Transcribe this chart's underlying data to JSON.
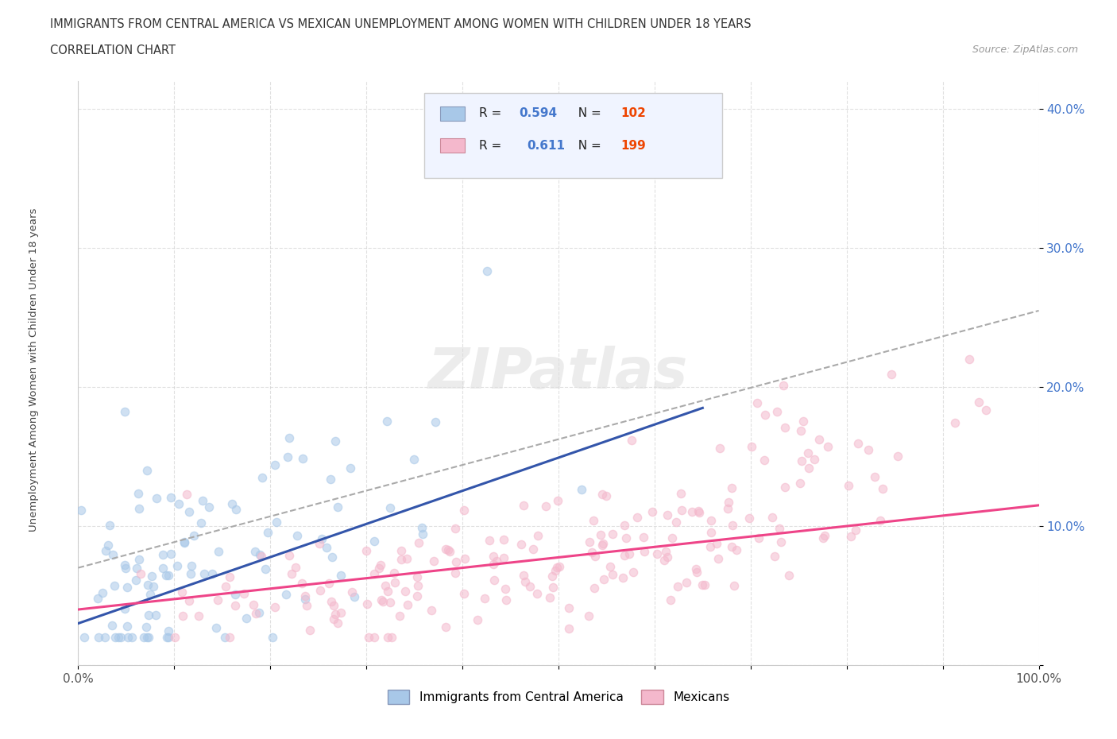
{
  "title": "IMMIGRANTS FROM CENTRAL AMERICA VS MEXICAN UNEMPLOYMENT AMONG WOMEN WITH CHILDREN UNDER 18 YEARS",
  "subtitle": "CORRELATION CHART",
  "source": "Source: ZipAtlas.com",
  "ylabel": "Unemployment Among Women with Children Under 18 years",
  "xlim": [
    0,
    1.0
  ],
  "ylim": [
    0,
    0.42
  ],
  "xtick_positions": [
    0,
    0.1,
    0.2,
    0.3,
    0.4,
    0.5,
    0.6,
    0.7,
    0.8,
    0.9,
    1.0
  ],
  "xticklabels": [
    "0.0%",
    "",
    "",
    "",
    "",
    "",
    "",
    "",
    "",
    "",
    "100.0%"
  ],
  "ytick_positions": [
    0,
    0.1,
    0.2,
    0.3,
    0.4
  ],
  "yticklabels": [
    "",
    "10.0%",
    "20.0%",
    "30.0%",
    "40.0%"
  ],
  "legend_labels": [
    "Immigrants from Central America",
    "Mexicans"
  ],
  "blue_R": "0.594",
  "blue_N": "102",
  "pink_R": "0.611",
  "pink_N": "199",
  "blue_scatter_color": "#A8C8E8",
  "pink_scatter_color": "#F4B8CC",
  "blue_line_color": "#3355AA",
  "pink_line_color": "#EE4488",
  "dash_line_color": "#AAAAAA",
  "grid_color": "#CCCCCC",
  "background_color": "#FFFFFF",
  "title_color": "#333333",
  "tick_color": "#4477CC",
  "watermark_color": "#DDDDDD",
  "legend_box_color": "#F0F4FF",
  "legend_border_color": "#CCCCCC"
}
